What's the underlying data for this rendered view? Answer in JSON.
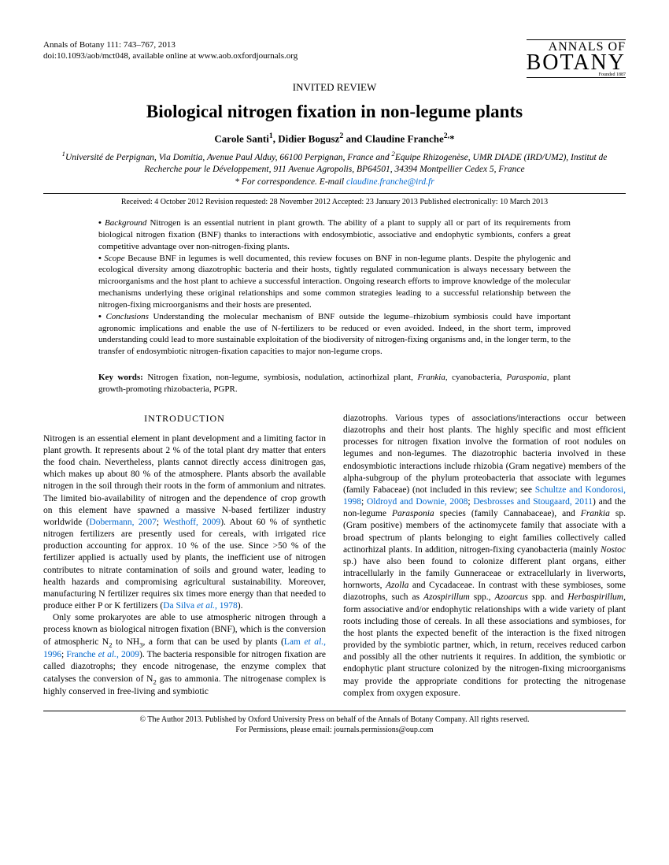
{
  "header": {
    "journal_citation": "Annals of Botany 111: 743–767, 2013",
    "doi": "doi:10.1093/aob/mct048, available online at www.aob.oxfordjournals.org",
    "logo_line1": "ANNALS OF",
    "logo_line2": "BOTANY",
    "logo_founded": "Founded 1887"
  },
  "review_type": "INVITED REVIEW",
  "title": "Biological nitrogen fixation in non-legume plants",
  "authors_html": "Carole Santi<sup>1</sup>, Didier Bogusz<sup>2</sup> and Claudine Franche<sup>2,</sup>*",
  "affiliations_html": "<sup>1</sup>Université de Perpignan, Via Domitia, Avenue Paul Alduy, 66100 Perpignan, France and <sup>2</sup>Equipe Rhizogenèse, UMR DIADE (IRD/UM2), Institut de Recherche pour le Développement, 911 Avenue Agropolis, BP64501, 34394 Montpellier Cedex 5, France",
  "correspondence_label": "* For correspondence. E-mail ",
  "correspondence_email": "claudine.franche@ird.fr",
  "dates": "Received: 4 October 2012   Revision requested: 28 November 2012   Accepted: 23 January 2013   Published electronically: 10 March 2013",
  "abstract": {
    "background_label": "Background",
    "background_text": " Nitrogen is an essential nutrient in plant growth. The ability of a plant to supply all or part of its requirements from biological nitrogen fixation (BNF) thanks to interactions with endosymbiotic, associative and endophytic symbionts, confers a great competitive advantage over non-nitrogen-fixing plants.",
    "scope_label": "Scope",
    "scope_text": " Because BNF in legumes is well documented, this review focuses on BNF in non-legume plants. Despite the phylogenic and ecological diversity among diazotrophic bacteria and their hosts, tightly regulated communication is always necessary between the microorganisms and the host plant to achieve a successful interaction. Ongoing research efforts to improve knowledge of the molecular mechanisms underlying these original relationships and some common strategies leading to a successful relationship between the nitrogen-fixing microorganisms and their hosts are presented.",
    "conclusions_label": "Conclusions",
    "conclusions_text": " Understanding the molecular mechanism of BNF outside the legume–rhizobium symbiosis could have important agronomic implications and enable the use of N-fertilizers to be reduced or even avoided. Indeed, in the short term, improved understanding could lead to more sustainable exploitation of the biodiversity of nitrogen-fixing organisms and, in the longer term, to the transfer of endosymbiotic nitrogen-fixation capacities to major non-legume crops."
  },
  "keywords": {
    "label": "Key words:",
    "text_html": " Nitrogen fixation, non-legume, symbiosis, nodulation, actinorhizal plant, <span class=\"italic\">Frankia</span>, cyanobacteria, <span class=\"italic\">Parasponia</span>, plant growth-promoting rhizobacteria, PGPR."
  },
  "introduction_heading": "INTRODUCTION",
  "body": {
    "col1_p1_html": "Nitrogen is an essential element in plant development and a limiting factor in plant growth. It represents about 2 % of the total plant dry matter that enters the food chain. Nevertheless, plants cannot directly access dinitrogen gas, which makes up about 80 % of the atmosphere. Plants absorb the available nitrogen in the soil through their roots in the form of ammonium and nitrates. The limited bio-availability of nitrogen and the dependence of crop growth on this element have spawned a massive N-based fertilizer industry worldwide (<span class=\"cite\">Dobermann, 2007</span>; <span class=\"cite\">Westhoff, 2009</span>). About 60 % of synthetic nitrogen fertilizers are presently used for cereals, with irrigated rice production accounting for approx. 10 % of the use. Since &gt;50 % of the fertilizer applied is actually used by plants, the inefficient use of nitrogen contributes to nitrate contamination of soils and ground water, leading to health hazards and compromising agricultural sustainability. Moreover, manufacturing N fertilizer requires six times more energy than that needed to produce either P or K fertilizers (<span class=\"cite\">Da Silva <i>et al.</i>, 1978</span>).",
    "col1_p2_html": "Only some prokaryotes are able to use atmospheric nitrogen through a process known as biological nitrogen fixation (BNF), which is the conversion of atmospheric N<sub>2</sub> to NH<sub>3</sub>, a form that can be used by plants (<span class=\"cite\">Lam <i>et al.</i>, 1996</span>; <span class=\"cite\">Franche <i>et al.</i>, 2009</span>). The bacteria responsible for nitrogen fixation are called diazotrophs; they encode nitrogenase, the enzyme complex that catalyses the conversion of N<sub>2</sub> gas to ammonia. The nitrogenase complex is highly conserved in free-living and symbiotic",
    "col2_p1_html": "diazotrophs. Various types of associations/interactions occur between diazotrophs and their host plants. The highly specific and most efficient processes for nitrogen fixation involve the formation of root nodules on legumes and non-legumes. The diazotrophic bacteria involved in these endosymbiotic interactions include rhizobia (Gram negative) members of the alpha-subgroup of the phylum proteobacteria that associate with legumes (family Fabaceae) (not included in this review; see <span class=\"cite\">Schultze and Kondorosi, 1998</span>; <span class=\"cite\">Oldroyd and Downie, 2008</span>; <span class=\"cite\">Desbrosses and Stougaard, 2011</span>) and the non-legume <i>Parasponia</i> species (family Cannabaceae), and <i>Frankia</i> sp. (Gram positive) members of the actinomycete family that associate with a broad spectrum of plants belonging to eight families collectively called actinorhizal plants. In addition, nitrogen-fixing cyanobacteria (mainly <i>Nostoc</i> sp.) have also been found to colonize different plant organs, either intracellularly in the family Gunneraceae or extracellularly in liverworts, hornworts, <i>Azolla</i> and Cycadaceae. In contrast with these symbioses, some diazotrophs, such as <i>Azospirillum</i> spp., <i>Azoarcus</i> spp. and <i>Herbaspirillum</i>, form associative and/or endophytic relationships with a wide variety of plant roots including those of cereals. In all these associations and symbioses, for the host plants the expected benefit of the interaction is the fixed nitrogen provided by the symbiotic partner, which, in return, receives reduced carbon and possibly all the other nutrients it requires. In addition, the symbiotic or endophytic plant structure colonized by the nitrogen-fixing microorganisms may provide the appropriate conditions for protecting the nitrogenase complex from oxygen exposure."
  },
  "footer": {
    "line1": "© The Author 2013. Published by Oxford University Press on behalf of the Annals of Botany Company. All rights reserved.",
    "line2": "For Permissions, please email: journals.permissions@oup.com"
  }
}
